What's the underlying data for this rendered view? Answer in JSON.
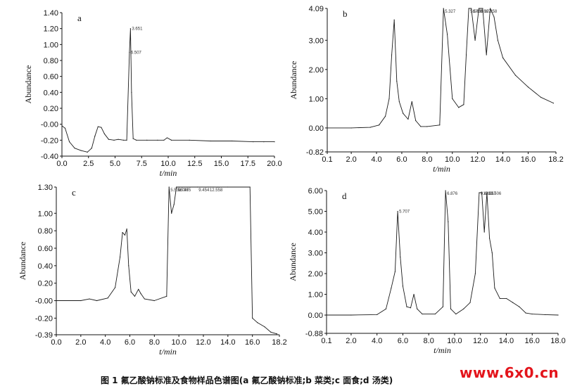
{
  "caption": "图 1 氟乙酸钠标准及食物样品色谱图(a 氟乙酸钠标准;b 菜类;c 面食;d 汤类)",
  "watermark": "www.6x0.cn",
  "colors": {
    "axis": "#111111",
    "trace": "#1a1a1a",
    "watermark": "#e3141b"
  },
  "chart_data": [
    {
      "panel": "a",
      "type": "line",
      "xlabel": "t/min",
      "ylabel": "Abundance",
      "xlim": [
        0.0,
        20.0
      ],
      "ylim": [
        -0.4,
        1.4
      ],
      "xticks": [
        "0.0",
        "2.5",
        "5.0",
        "7.5",
        "10.0",
        "12.5",
        "15.0",
        "17.5",
        "20.0"
      ],
      "xtick_values": [
        0,
        2.5,
        5,
        7.5,
        10,
        12.5,
        15,
        17.5,
        20
      ],
      "yticks": [
        "1.40",
        "1.20",
        "1.00",
        "0.80",
        "0.60",
        "0.40",
        "0.20",
        "-0.00",
        "-0.20",
        "-0.40"
      ],
      "ytick_values": [
        1.4,
        1.2,
        1.0,
        0.8,
        0.6,
        0.4,
        0.2,
        0.0,
        -0.2,
        -0.4
      ],
      "x": [
        0,
        0.3,
        0.7,
        1.2,
        1.8,
        2.4,
        2.8,
        3.1,
        3.4,
        3.7,
        4.0,
        4.4,
        4.9,
        5.3,
        5.8,
        6.1,
        6.35,
        6.45,
        6.55,
        6.7,
        7.0,
        8.0,
        9.0,
        9.6,
        9.9,
        10.3,
        12,
        14,
        16,
        18,
        19,
        20
      ],
      "y": [
        -0.02,
        -0.05,
        -0.22,
        -0.3,
        -0.33,
        -0.35,
        -0.3,
        -0.15,
        -0.03,
        -0.04,
        -0.12,
        -0.19,
        -0.2,
        -0.19,
        -0.2,
        -0.2,
        0.9,
        1.2,
        0.4,
        -0.18,
        -0.2,
        -0.2,
        -0.2,
        -0.2,
        -0.17,
        -0.2,
        -0.2,
        -0.21,
        -0.21,
        -0.22,
        -0.22,
        -0.22
      ]
    },
    {
      "panel": "b",
      "type": "line",
      "xlabel": "t/min",
      "ylabel": "Abundance",
      "xlim": [
        0.1,
        18.2
      ],
      "ylim": [
        -0.82,
        4.09
      ],
      "xticks": [
        "0.1",
        "2.0",
        "4.0",
        "6.0",
        "8.0",
        "10.0",
        "12.0",
        "14.0",
        "16.0",
        "18.2"
      ],
      "xtick_values": [
        0.1,
        2,
        4,
        6,
        8,
        10,
        12,
        14,
        16,
        18.2
      ],
      "yticks": [
        "4.09",
        "3.00",
        "2.00",
        "1.00",
        "0.00",
        "-0.82"
      ],
      "ytick_values": [
        4.09,
        3.0,
        2.0,
        1.0,
        0.0,
        -0.82
      ],
      "x": [
        0.1,
        2,
        3.5,
        4.2,
        4.7,
        5.0,
        5.2,
        5.4,
        5.6,
        5.8,
        6.1,
        6.5,
        6.8,
        7.1,
        7.5,
        8.0,
        9.0,
        9.3,
        9.6,
        10.0,
        10.5,
        10.9,
        11.1,
        11.3,
        11.5,
        11.8,
        12.1,
        12.4,
        12.7,
        13.0,
        13.3,
        13.6,
        14,
        15,
        16,
        17,
        18
      ],
      "y": [
        0.0,
        0.0,
        0.02,
        0.1,
        0.4,
        1.0,
        2.5,
        3.7,
        1.6,
        0.9,
        0.5,
        0.3,
        0.9,
        0.25,
        0.05,
        0.05,
        0.1,
        4.09,
        3.2,
        1.0,
        0.7,
        0.8,
        2.5,
        4.09,
        4.09,
        3.0,
        4.09,
        4.09,
        2.5,
        4.09,
        3.8,
        3.0,
        2.4,
        1.8,
        1.4,
        1.05,
        0.85
      ]
    },
    {
      "panel": "c",
      "type": "line",
      "xlabel": "t/min",
      "ylabel": "Abundance",
      "xlim": [
        0.0,
        18.2
      ],
      "ylim": [
        -0.39,
        1.3
      ],
      "xticks": [
        "0.0",
        "2.0",
        "4.0",
        "6.0",
        "8.0",
        "10.0",
        "12.0",
        "14.0",
        "16.0",
        "18.2"
      ],
      "xtick_values": [
        0,
        2,
        4,
        6,
        8,
        10,
        12,
        14,
        16,
        18.2
      ],
      "yticks": [
        "1.30",
        "1.00",
        "0.80",
        "0.60",
        "0.40",
        "0.20",
        "-0.00",
        "-0.20",
        "-0.39"
      ],
      "ytick_values": [
        1.3,
        1.0,
        0.8,
        0.6,
        0.4,
        0.2,
        0.0,
        -0.2,
        -0.39
      ],
      "x": [
        0,
        2,
        2.7,
        3.3,
        4.2,
        4.8,
        5.2,
        5.4,
        5.6,
        5.75,
        5.9,
        6.1,
        6.4,
        6.7,
        6.9,
        7.2,
        8,
        9.0,
        9.2,
        9.4,
        9.6,
        9.8,
        10.0,
        11.5,
        12.4,
        12.6,
        12.8,
        13.2,
        14,
        15.8,
        16.0,
        16.4,
        17,
        17.5,
        18
      ],
      "y": [
        0.0,
        0.0,
        0.02,
        0.0,
        0.03,
        0.15,
        0.5,
        0.78,
        0.75,
        0.82,
        0.4,
        0.1,
        0.05,
        0.13,
        0.08,
        0.02,
        0.0,
        0.05,
        1.3,
        1.0,
        1.1,
        1.3,
        1.3,
        1.3,
        1.3,
        1.3,
        1.3,
        1.3,
        1.3,
        1.3,
        -0.2,
        -0.25,
        -0.3,
        -0.36,
        -0.38
      ]
    },
    {
      "panel": "d",
      "type": "line",
      "xlabel": "t/min",
      "ylabel": "Abundance",
      "xlim": [
        0.1,
        18.0
      ],
      "ylim": [
        -0.88,
        6.0
      ],
      "xticks": [
        "0.1",
        "2.0",
        "4.0",
        "6.0",
        "8.0",
        "10.0",
        "12.0",
        "14.0",
        "16.0",
        "18.0"
      ],
      "xtick_values": [
        0.1,
        2,
        4,
        6,
        8,
        10,
        12,
        14,
        16,
        18
      ],
      "yticks": [
        "6.00",
        "5.00",
        "4.00",
        "3.00",
        "2.00",
        "1.00",
        "0.00",
        "-0.88"
      ],
      "ytick_values": [
        6.0,
        5.0,
        4.0,
        3.0,
        2.0,
        1.0,
        0.0,
        -0.88
      ],
      "x": [
        0.1,
        2,
        4,
        4.7,
        5.1,
        5.4,
        5.6,
        5.8,
        6.0,
        6.3,
        6.6,
        6.85,
        7.1,
        7.5,
        8.5,
        9.1,
        9.3,
        9.5,
        9.7,
        10.1,
        10.7,
        11.2,
        11.6,
        11.9,
        12.1,
        12.3,
        12.5,
        12.7,
        12.9,
        13.1,
        13.5,
        14,
        14.5,
        15.0,
        15.5,
        16,
        17,
        18
      ],
      "y": [
        0.0,
        0.0,
        0.02,
        0.3,
        1.3,
        2.1,
        5.0,
        2.8,
        1.4,
        0.4,
        0.35,
        1.0,
        0.3,
        0.05,
        0.05,
        0.4,
        6.0,
        4.5,
        0.3,
        0.05,
        0.3,
        0.6,
        2.0,
        5.9,
        5.9,
        4.0,
        5.9,
        3.7,
        3.0,
        1.3,
        0.8,
        0.8,
        0.6,
        0.4,
        0.1,
        0.05,
        0.02,
        0.0
      ]
    }
  ],
  "peak_labels": {
    "a": [
      "6.507",
      "3.651"
    ],
    "b": [
      "5.327",
      "5.575",
      "6.636",
      "9.007",
      "12.958"
    ],
    "c": [
      "5.538",
      "5.736",
      "6.475",
      "9.454",
      "12.558"
    ],
    "d": [
      "5.707",
      "6.876",
      "9.449",
      "12.267",
      "13.506"
    ]
  }
}
